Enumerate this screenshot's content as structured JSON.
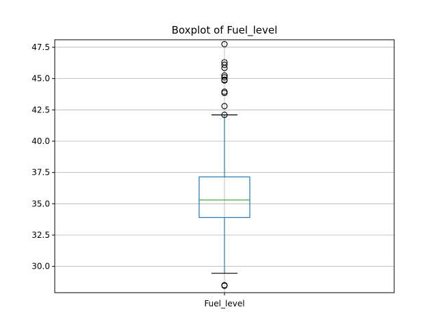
{
  "chart_data": {
    "type": "boxplot",
    "title": "Boxplot of Fuel_level",
    "xlabel": "",
    "ylabel": "",
    "categories": [
      "Fuel_level"
    ],
    "ylim": [
      27.9,
      48.1
    ],
    "yticks": [
      30.0,
      32.5,
      35.0,
      37.5,
      40.0,
      42.5,
      45.0,
      47.5
    ],
    "ytick_labels": [
      "30.0",
      "32.5",
      "35.0",
      "37.5",
      "40.0",
      "42.5",
      "45.0",
      "47.5"
    ],
    "grid": true,
    "legend": "none",
    "boxes": [
      {
        "category": "Fuel_level",
        "whisker_low": 29.45,
        "q1": 33.9,
        "median": 35.3,
        "q3": 37.15,
        "whisker_high": 42.1,
        "outliers": [
          47.75,
          46.3,
          46.1,
          45.85,
          45.25,
          45.1,
          44.9,
          44.85,
          43.95,
          43.85,
          42.8,
          42.1,
          28.5,
          28.45
        ]
      }
    ],
    "colors": {
      "box": "#1f77b4",
      "median": "#2ca02c",
      "cap": "#000000",
      "outlier": "#000000",
      "grid": "#b0b0b0",
      "axis": "#000000"
    }
  }
}
